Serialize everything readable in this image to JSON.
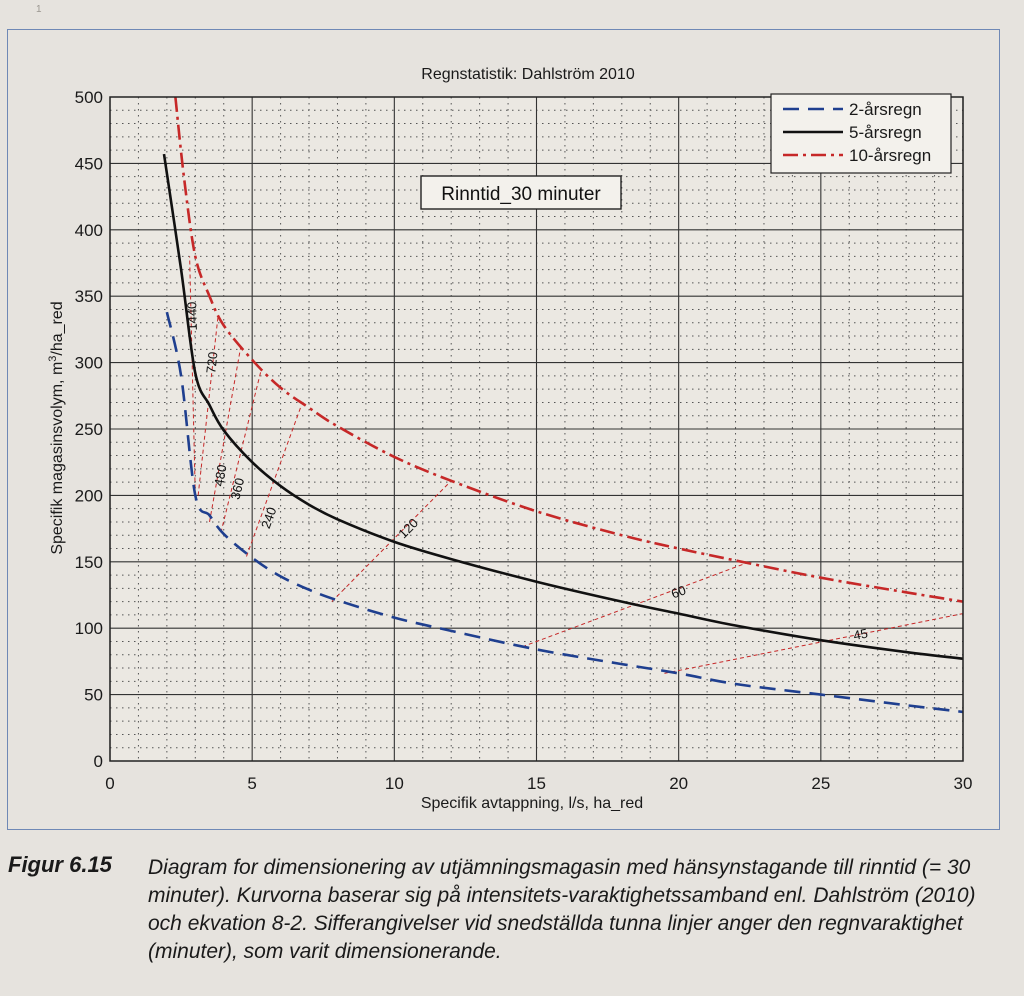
{
  "page": {
    "mark": "1"
  },
  "figure": {
    "label": "Figur 6.15",
    "caption": "Diagram for dimensionering av utjämningsmagasin med hänsynstagande till rinntid (= 30 minuter). Kurvorna baserar sig på intensitets-varaktighetssamband enl. Dahlström (2010) och ekvation 8-2. Sifferangivelser vid snedställda tunna linjer anger den regnvaraktighet (minuter), som varit dimensionerande."
  },
  "chart_data": {
    "type": "line",
    "title": "Regnstatistik: Dahlström 2010",
    "xlabel": "Specifik avtappning, l/s, ha_red",
    "ylabel": "Specifik magasinsvolym, m³/ha_red",
    "ylabel_parts": {
      "before": "Specifik magasinsvolym, m",
      "sup": "3",
      "after": "/ha_red"
    },
    "xlim": [
      0,
      30
    ],
    "ylim": [
      0,
      500
    ],
    "x_ticks": [
      0,
      5,
      10,
      15,
      20,
      25,
      30
    ],
    "y_ticks": [
      0,
      50,
      100,
      150,
      200,
      250,
      300,
      350,
      400,
      450,
      500
    ],
    "x_tick_labels": [
      "0",
      "5",
      "10",
      "15",
      "20",
      "25",
      "30"
    ],
    "y_tick_labels": [
      "0",
      "50",
      "100",
      "150",
      "200",
      "250",
      "300",
      "350",
      "400",
      "450",
      "500"
    ],
    "grid": true,
    "minor_grid": true,
    "legend_position": "top-right",
    "annotation_box": "Rinntid_30 minuter",
    "series": [
      {
        "name": "2-årsregn",
        "color": "#1f3f8f",
        "style": "dashed",
        "x": [
          2,
          2.5,
          3,
          3.5,
          4,
          5,
          6,
          7,
          8,
          10,
          12,
          15,
          18,
          20,
          22,
          25,
          28,
          30
        ],
        "y": [
          338,
          290,
          200,
          185,
          171,
          153,
          139,
          129,
          121,
          108,
          98,
          84,
          73,
          66,
          58,
          50,
          42,
          37
        ]
      },
      {
        "name": "5-årsregn",
        "color": "#111111",
        "style": "solid",
        "x": [
          1.9,
          2.5,
          3,
          3.5,
          4,
          5,
          6,
          7,
          8,
          10,
          12,
          15,
          18,
          20,
          22,
          25,
          28,
          30
        ],
        "y": [
          457,
          370,
          292,
          268,
          249,
          225,
          207,
          193,
          182,
          165,
          152,
          135,
          120,
          111,
          102,
          91,
          82,
          77
        ]
      },
      {
        "name": "10-årsregn",
        "color": "#c62828",
        "style": "dashdot",
        "x": [
          2.3,
          2.6,
          3,
          3.5,
          4,
          5,
          6,
          7,
          8,
          10,
          12,
          15,
          18,
          20,
          22,
          25,
          28,
          30
        ],
        "y": [
          500,
          440,
          380,
          350,
          328,
          302,
          281,
          266,
          252,
          229,
          211,
          188,
          170,
          160,
          151,
          138,
          127,
          120
        ]
      }
    ],
    "duration_lines": [
      {
        "label": "1440",
        "x1": 3.0,
        "y1": 200,
        "x2": 2.8,
        "y2": 380,
        "lx": 2.9,
        "ly": 335
      },
      {
        "label": "720",
        "x1": 3.1,
        "y1": 200,
        "x2": 3.8,
        "y2": 335,
        "lx": 3.6,
        "ly": 300
      },
      {
        "label": "480",
        "x1": 3.5,
        "y1": 180,
        "x2": 4.6,
        "y2": 312,
        "lx": 3.9,
        "ly": 215
      },
      {
        "label": "360",
        "x1": 3.9,
        "y1": 172,
        "x2": 5.3,
        "y2": 293,
        "lx": 4.5,
        "ly": 205
      },
      {
        "label": "240",
        "x1": 4.8,
        "y1": 154,
        "x2": 6.7,
        "y2": 266,
        "lx": 5.6,
        "ly": 183
      },
      {
        "label": "120",
        "x1": 7.8,
        "y1": 120,
        "x2": 12.0,
        "y2": 211,
        "lx": 10.5,
        "ly": 175
      },
      {
        "label": "60",
        "x1": 14.5,
        "y1": 86,
        "x2": 22.5,
        "y2": 150,
        "lx": 20.0,
        "ly": 127
      },
      {
        "label": "45",
        "x1": 19.5,
        "y1": 66,
        "x2": 30.0,
        "y2": 111,
        "lx": 26.4,
        "ly": 95
      }
    ]
  }
}
